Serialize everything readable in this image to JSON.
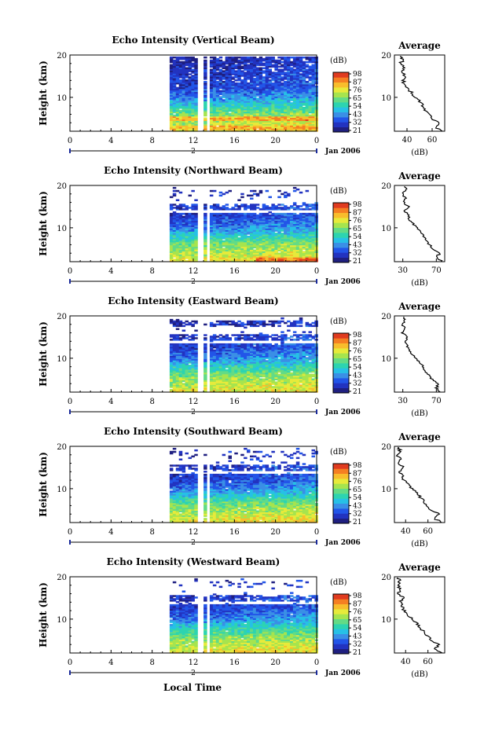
{
  "figure": {
    "xlabel": "Local Time",
    "xticks": [
      "0",
      "4",
      "8",
      "12",
      "16",
      "20",
      "0"
    ],
    "day_marker": "2",
    "month_label": "Jan 2006",
    "ylabel": "Height (km)",
    "yticks": [
      "20",
      "10"
    ],
    "colorbar_unit": "(dB)",
    "profile_title": "Average",
    "profile_xlabel": "(dB)"
  },
  "colormap": [
    "#1f1f80",
    "#2233c0",
    "#2255e8",
    "#3a8fe6",
    "#27c0e6",
    "#2dd4b0",
    "#63db86",
    "#a6e44e",
    "#e7ea3b",
    "#f8bd2c",
    "#f57f22",
    "#e03b1f"
  ],
  "chart_data": [
    {
      "type": "heatmap",
      "title": "Echo Intensity (Vertical Beam)",
      "xlabel": "Local Time",
      "ylabel": "Height (km)",
      "xlim": [
        0,
        24
      ],
      "ylim": [
        2,
        20
      ],
      "data_start_hour": 9.7,
      "gap_hours": [
        [
          12.6,
          12.9
        ],
        [
          13.4,
          13.6
        ]
      ],
      "colorbar_ticks": [
        "98",
        "87",
        "76",
        "65",
        "54",
        "43",
        "32",
        "21"
      ],
      "profile": {
        "title": "Average",
        "xlabel": "(dB)",
        "xtick_labels": [
          "40",
          "60"
        ],
        "xlim": [
          30,
          70
        ],
        "heights": [
          2,
          3,
          4,
          5,
          6,
          7,
          8,
          9,
          10,
          11,
          12,
          13,
          14,
          15,
          16,
          17,
          18,
          19,
          19.8
        ],
        "values": [
          68,
          63,
          66,
          60,
          58,
          55,
          52,
          50,
          47,
          44,
          40,
          38,
          37,
          39,
          36,
          38,
          35,
          37,
          35
        ]
      }
    },
    {
      "type": "heatmap",
      "title": "Echo Intensity (Northward Beam)",
      "xlabel": "Local Time",
      "ylabel": "Height (km)",
      "xlim": [
        0,
        24
      ],
      "ylim": [
        2,
        20
      ],
      "data_start_hour": 9.7,
      "gap_hours": [
        [
          12.6,
          12.9
        ],
        [
          13.4,
          13.6
        ]
      ],
      "colorbar_ticks": [
        "98",
        "87",
        "76",
        "65",
        "54",
        "43",
        "32",
        "21"
      ],
      "profile": {
        "title": "Average",
        "xlabel": "(dB)",
        "xtick_labels": [
          "30",
          "70"
        ],
        "xlim": [
          20,
          80
        ],
        "heights": [
          2,
          3,
          4,
          5,
          6,
          7,
          8,
          9,
          10,
          11,
          12,
          13,
          14,
          15,
          16,
          17,
          18,
          19,
          19.8
        ],
        "values": [
          77,
          70,
          74,
          66,
          62,
          58,
          55,
          51,
          47,
          42,
          38,
          36,
          33,
          37,
          31,
          33,
          30,
          34,
          32
        ]
      }
    },
    {
      "type": "heatmap",
      "title": "Echo Intensity (Eastward Beam)",
      "xlabel": "Local Time",
      "ylabel": "Height (km)",
      "xlim": [
        0,
        24
      ],
      "ylim": [
        2,
        20
      ],
      "data_start_hour": 9.7,
      "gap_hours": [
        [
          12.6,
          12.9
        ],
        [
          13.4,
          13.6
        ]
      ],
      "colorbar_ticks": [
        "98",
        "87",
        "76",
        "65",
        "54",
        "43",
        "32",
        "21"
      ],
      "profile": {
        "title": "Average",
        "xlabel": "(dB)",
        "xtick_labels": [
          "30",
          "70"
        ],
        "xlim": [
          20,
          80
        ],
        "heights": [
          2,
          3,
          4,
          5,
          6,
          7,
          8,
          9,
          10,
          11,
          12,
          13,
          14,
          15,
          16,
          17,
          18,
          19,
          19.8
        ],
        "values": [
          76,
          70,
          73,
          65,
          61,
          57,
          54,
          50,
          46,
          41,
          37,
          35,
          32,
          36,
          30,
          32,
          30,
          33,
          31
        ]
      }
    },
    {
      "type": "heatmap",
      "title": "Echo Intensity (Southward Beam)",
      "xlabel": "Local Time",
      "ylabel": "Height (km)",
      "xlim": [
        0,
        24
      ],
      "ylim": [
        2,
        20
      ],
      "data_start_hour": 9.7,
      "gap_hours": [
        [
          12.6,
          12.9
        ],
        [
          13.4,
          13.6
        ]
      ],
      "colorbar_ticks": [
        "98",
        "87",
        "76",
        "65",
        "54",
        "43",
        "32",
        "21"
      ],
      "profile": {
        "title": "Average",
        "xlabel": "(dB)",
        "xtick_labels": [
          "40",
          "60"
        ],
        "xlim": [
          30,
          75
        ],
        "heights": [
          2,
          3,
          4,
          5,
          6,
          7,
          8,
          9,
          10,
          11,
          12,
          13,
          14,
          15,
          16,
          17,
          18,
          19,
          19.8
        ],
        "values": [
          72,
          66,
          70,
          63,
          60,
          56,
          53,
          50,
          46,
          42,
          39,
          37,
          35,
          39,
          33,
          35,
          32,
          35,
          33
        ]
      }
    },
    {
      "type": "heatmap",
      "title": "Echo Intensity (Westward Beam)",
      "xlabel": "Local Time",
      "ylabel": "Height (km)",
      "xlim": [
        0,
        24
      ],
      "ylim": [
        2,
        20
      ],
      "data_start_hour": 9.7,
      "gap_hours": [
        [
          12.6,
          12.9
        ],
        [
          13.4,
          13.6
        ]
      ],
      "colorbar_ticks": [
        "98",
        "87",
        "76",
        "65",
        "54",
        "43",
        "32",
        "21"
      ],
      "profile": {
        "title": "Average",
        "xlabel": "(dB)",
        "xtick_labels": [
          "40",
          "60"
        ],
        "xlim": [
          30,
          75
        ],
        "heights": [
          2,
          3,
          4,
          5,
          6,
          7,
          8,
          9,
          10,
          11,
          12,
          13,
          14,
          15,
          16,
          17,
          18,
          19,
          19.8
        ],
        "values": [
          72,
          66,
          70,
          63,
          60,
          56,
          53,
          50,
          46,
          42,
          39,
          37,
          35,
          39,
          33,
          35,
          33,
          35,
          33
        ]
      }
    }
  ]
}
